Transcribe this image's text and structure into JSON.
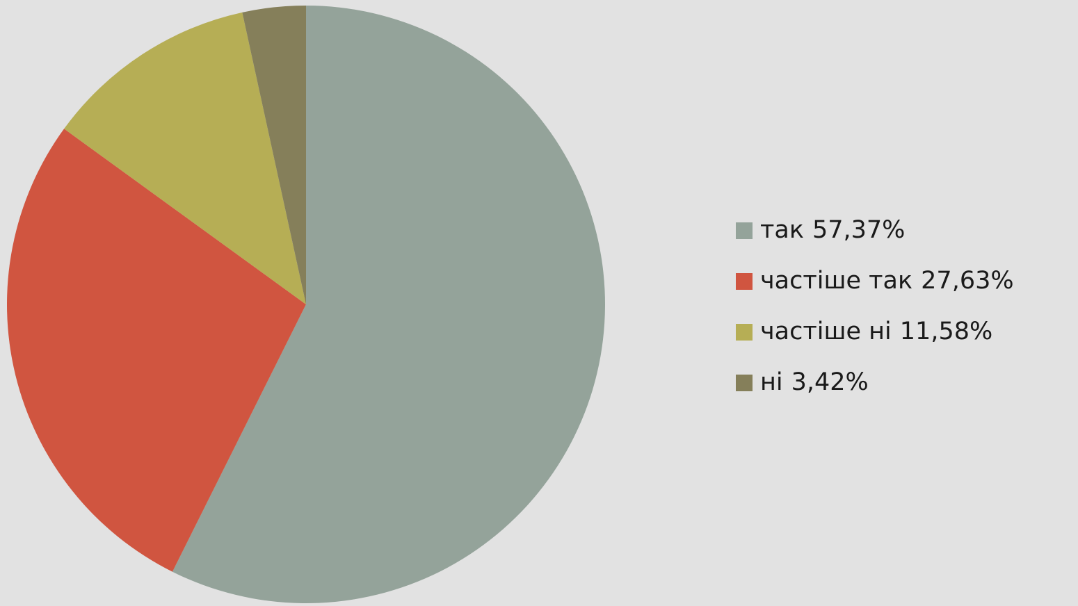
{
  "chart_data": {
    "type": "pie",
    "categories": [
      "так",
      "частіше так",
      "частіше ні",
      "ні"
    ],
    "values": [
      57.37,
      27.63,
      11.58,
      3.42
    ],
    "value_labels": [
      "57,37%",
      "27,63%",
      "11,58%",
      "3,42%"
    ],
    "colors": [
      "#94a39a",
      "#d05540",
      "#b6ae55",
      "#857f5a"
    ],
    "legend": "right"
  }
}
